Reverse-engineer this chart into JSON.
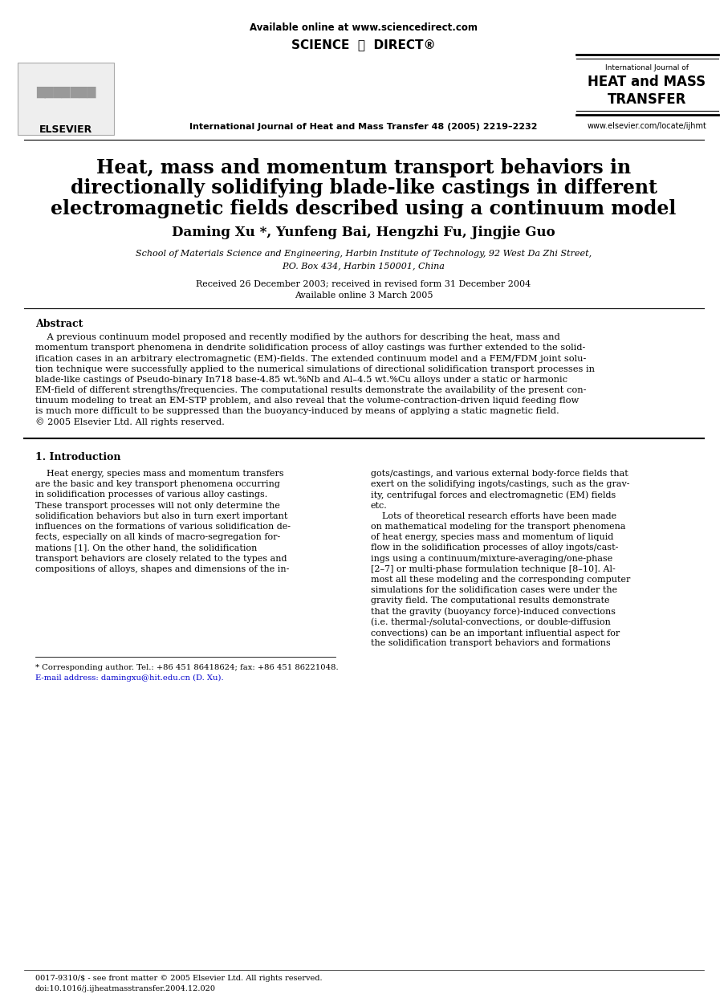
{
  "background_color": "#ffffff",
  "header_available_online": "Available online at www.sciencedirect.com",
  "journal_name_center": "International Journal of Heat and Mass Transfer 48 (2005) 2219–2232",
  "journal_name_right_line1": "International Journal of",
  "journal_name_right_line2": "HEAT and MASS",
  "journal_name_right_line3": "TRANSFER",
  "journal_website": "www.elsevier.com/locate/ijhmt",
  "title_line1": "Heat, mass and momentum transport behaviors in",
  "title_line2": "directionally solidifying blade-like castings in different",
  "title_line3": "electromagnetic fields described using a continuum model",
  "authors": "Daming Xu *, Yunfeng Bai, Hengzhi Fu, Jingjie Guo",
  "affiliation_line1": "School of Materials Science and Engineering, Harbin Institute of Technology, 92 West Da Zhi Street,",
  "affiliation_line2": "P.O. Box 434, Harbin 150001, China",
  "received": "Received 26 December 2003; received in revised form 31 December 2004",
  "available_online": "Available online 3 March 2005",
  "abstract_heading": "Abstract",
  "abstract_copyright": "© 2005 Elsevier Ltd. All rights reserved.",
  "intro_heading": "1. Introduction",
  "footnote_corresponding": "* Corresponding author. Tel.: +86 451 86418624; fax: +86 451 86221048.",
  "footnote_email": "E-mail address: damingxu@hit.edu.cn (D. Xu).",
  "footer_issn": "0017-9310/$ - see front matter © 2005 Elsevier Ltd. All rights reserved.",
  "footer_doi": "doi:10.1016/j.ijheatmasstransfer.2004.12.020",
  "abs_lines": [
    "    A previous continuum model proposed and recently modified by the authors for describing the heat, mass and",
    "momentum transport phenomena in dendrite solidification process of alloy castings was further extended to the solid-",
    "ification cases in an arbitrary electromagnetic (EM)-fields. The extended continuum model and a FEM/FDM joint solu-",
    "tion technique were successfully applied to the numerical simulations of directional solidification transport processes in",
    "blade-like castings of Pseudo-binary In718 base-4.85 wt.%Nb and Al–4.5 wt.%Cu alloys under a static or harmonic",
    "EM-field of different strengths/frequencies. The computational results demonstrate the availability of the present con-",
    "tinuum modeling to treat an EM-STP problem, and also reveal that the volume-contraction-driven liquid feeding flow",
    "is much more difficult to be suppressed than the buoyancy-induced by means of applying a static magnetic field.",
    "© 2005 Elsevier Ltd. All rights reserved."
  ],
  "col1_lines": [
    "    Heat energy, species mass and momentum transfers",
    "are the basic and key transport phenomena occurring",
    "in solidification processes of various alloy castings.",
    "These transport processes will not only determine the",
    "solidification behaviors but also in turn exert important",
    "influences on the formations of various solidification de-",
    "fects, especially on all kinds of macro-segregation for-",
    "mations [1]. On the other hand, the solidification",
    "transport behaviors are closely related to the types and",
    "compositions of alloys, shapes and dimensions of the in-"
  ],
  "col2_lines": [
    "gots/castings, and various external body-force fields that",
    "exert on the solidifying ingots/castings, such as the grav-",
    "ity, centrifugal forces and electromagnetic (EM) fields",
    "etc.",
    "    Lots of theoretical research efforts have been made",
    "on mathematical modeling for the transport phenomena",
    "of heat energy, species mass and momentum of liquid",
    "flow in the solidification processes of alloy ingots/cast-",
    "ings using a continuum/mixture-averaging/one-phase",
    "[2–7] or multi-phase formulation technique [8–10]. Al-",
    "most all these modeling and the corresponding computer",
    "simulations for the solidification cases were under the",
    "gravity field. The computational results demonstrate",
    "that the gravity (buoyancy force)-induced convections",
    "(i.e. thermal-/solutal-convections, or double-diffusion",
    "convections) can be an important influential aspect for",
    "the solidification transport behaviors and formations"
  ]
}
